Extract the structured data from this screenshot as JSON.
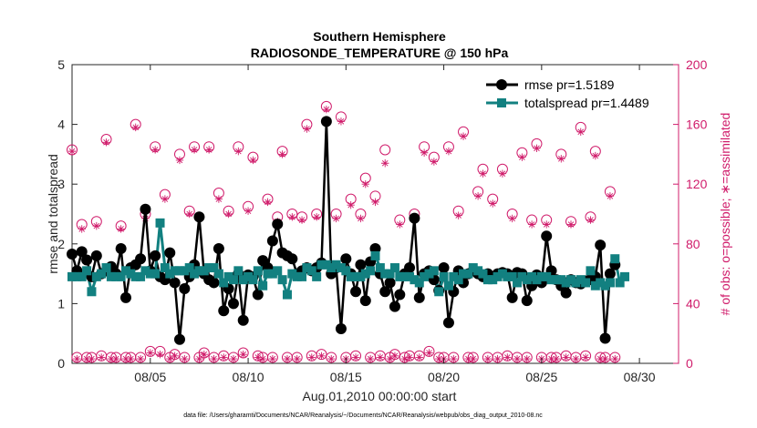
{
  "colors": {
    "rmse": "#000000",
    "totalspread": "#128080",
    "obs": "#d01c6b",
    "axes": "#262626"
  },
  "chart_data": {
    "type": "line",
    "title": "Southern Hemisphere",
    "subtitle": "RADIOSONDE_TEMPERATURE @ 150 hPa",
    "xlabel": "Aug.01,2010 00:00:00 start",
    "ylabel_left": "rmse and totalspread",
    "ylabel_right": "# of obs: o=possible; ∗=assimilated",
    "footnote": "data file: /Users/gharamti/Documents/NCAR/Reanalysis/~/Documents/NCAR/Reanalysis/webpub/obs_diag_output_2010-08.nc",
    "xlim": [
      1.0,
      32.0
    ],
    "ylim_left": [
      0,
      5
    ],
    "ylim_right": [
      0,
      200
    ],
    "x_ticks": [
      5,
      10,
      15,
      20,
      25,
      30
    ],
    "x_tick_labels": [
      "08/05",
      "08/10",
      "08/15",
      "08/20",
      "08/25",
      "08/30"
    ],
    "y_left_ticks": [
      "0",
      "1",
      "2",
      "3",
      "4",
      "5"
    ],
    "y_right_ticks": [
      "0",
      "40",
      "80",
      "120",
      "160",
      "200"
    ],
    "grid": false,
    "legend_position": "top-right",
    "x_start": 1.0,
    "x_step": 0.25,
    "series": [
      {
        "name": "rmse pr=1.5189",
        "axis": "left",
        "marker": "circle",
        "values": [
          1.83,
          1.55,
          1.87,
          1.73,
          1.45,
          1.8,
          1.5,
          1.55,
          1.62,
          1.5,
          1.92,
          1.1,
          1.6,
          1.65,
          1.75,
          2.58,
          1.55,
          1.8,
          1.45,
          1.4,
          1.85,
          1.35,
          0.4,
          1.25,
          1.45,
          1.65,
          2.45,
          1.5,
          1.4,
          1.35,
          1.92,
          0.88,
          1.25,
          1.0,
          1.5,
          0.72,
          1.48,
          1.45,
          1.15,
          1.72,
          1.6,
          2.05,
          2.33,
          1.85,
          1.8,
          1.75,
          1.5,
          1.55,
          1.6,
          1.55,
          1.6,
          1.68,
          4.05,
          1.5,
          1.6,
          0.58,
          1.75,
          1.5,
          1.2,
          1.65,
          1.05,
          1.7,
          1.92,
          1.5,
          1.2,
          1.35,
          0.95,
          1.15,
          1.5,
          1.6,
          2.43,
          1.1,
          1.5,
          1.55,
          1.4,
          1.22,
          1.6,
          0.68,
          1.2,
          1.55,
          1.35,
          1.5,
          1.55,
          1.5,
          1.45,
          1.5,
          1.45,
          1.5,
          1.52,
          1.5,
          1.1,
          1.52,
          1.5,
          1.05,
          1.3,
          1.48,
          1.35,
          2.13,
          1.55,
          1.4,
          1.3,
          1.18,
          1.4,
          1.35,
          1.33,
          1.38,
          1.4,
          1.45,
          1.98,
          0.42,
          1.5,
          1.65
        ]
      },
      {
        "name": "totalspread pr=1.4489",
        "axis": "left",
        "marker": "square",
        "values": [
          1.45,
          1.45,
          1.45,
          1.55,
          1.2,
          1.45,
          1.5,
          1.6,
          1.45,
          1.45,
          1.45,
          1.55,
          1.5,
          1.45,
          1.45,
          1.55,
          1.5,
          1.5,
          2.35,
          1.6,
          1.5,
          1.55,
          1.55,
          1.55,
          1.6,
          1.5,
          1.55,
          1.55,
          1.6,
          1.6,
          1.5,
          1.35,
          1.45,
          1.4,
          1.55,
          1.4,
          1.45,
          1.4,
          1.55,
          1.3,
          1.5,
          1.5,
          1.55,
          1.4,
          1.15,
          1.5,
          1.45,
          1.45,
          1.6,
          1.55,
          1.45,
          1.65,
          1.65,
          1.6,
          1.65,
          1.6,
          1.55,
          1.45,
          1.45,
          1.45,
          1.5,
          1.55,
          1.8,
          1.6,
          1.5,
          1.5,
          1.6,
          1.45,
          1.45,
          1.45,
          1.4,
          1.35,
          1.45,
          1.5,
          1.55,
          1.2,
          1.45,
          1.3,
          1.45,
          1.4,
          1.5,
          1.5,
          1.6,
          1.55,
          1.5,
          1.4,
          1.4,
          1.45,
          1.5,
          1.45,
          1.45,
          1.35,
          1.45,
          1.4,
          1.45,
          1.4,
          1.45,
          1.45,
          1.4,
          1.4,
          1.4,
          1.35,
          1.4,
          1.35,
          1.4,
          1.35,
          1.55,
          1.3,
          1.35,
          1.3,
          1.35,
          1.75,
          1.35,
          1.45
        ]
      }
    ],
    "obs_possible": {
      "axis": "right",
      "marker": "circle-open",
      "values": [
        143,
        4,
        93,
        4,
        4,
        95,
        5,
        150,
        4,
        4,
        92,
        4,
        4,
        160,
        4,
        100,
        8,
        145,
        8,
        113,
        4,
        6,
        140,
        4,
        102,
        145,
        4,
        7,
        145,
        4,
        114,
        5,
        102,
        4,
        145,
        7,
        105,
        138,
        5,
        4,
        110,
        4,
        98,
        142,
        4,
        100,
        4,
        98,
        160,
        5,
        100,
        6,
        172,
        4,
        100,
        165,
        4,
        110,
        5,
        100,
        124,
        4,
        112,
        5,
        143,
        4,
        6,
        96,
        4,
        5,
        100,
        5,
        145,
        8,
        138,
        4,
        4,
        145,
        4,
        102,
        155,
        4,
        4,
        115,
        130,
        4,
        110,
        4,
        130,
        5,
        100,
        4,
        141,
        4,
        96,
        147,
        4,
        96,
        4,
        4,
        140,
        5,
        95,
        4,
        158,
        5,
        98,
        142,
        4,
        4,
        115,
        4
      ]
    },
    "obs_assimilated": {
      "axis": "right",
      "marker": "asterisk",
      "values": [
        142,
        3,
        90,
        3,
        3,
        92,
        4,
        148,
        3,
        3,
        90,
        3,
        3,
        158,
        3,
        97,
        7,
        143,
        6,
        110,
        3,
        5,
        136,
        3,
        100,
        143,
        3,
        6,
        143,
        3,
        110,
        4,
        100,
        3,
        142,
        6,
        102,
        136,
        4,
        3,
        108,
        3,
        95,
        140,
        3,
        98,
        3,
        96,
        157,
        4,
        98,
        5,
        170,
        3,
        97,
        162,
        3,
        106,
        4,
        97,
        120,
        3,
        108,
        4,
        134,
        3,
        5,
        93,
        3,
        4,
        98,
        4,
        141,
        7,
        135,
        3,
        3,
        142,
        3,
        99,
        152,
        3,
        3,
        112,
        127,
        3,
        107,
        3,
        127,
        4,
        97,
        3,
        138,
        3,
        93,
        144,
        3,
        93,
        3,
        3,
        137,
        4,
        93,
        3,
        155,
        4,
        96,
        139,
        3,
        3,
        112,
        3
      ]
    }
  }
}
